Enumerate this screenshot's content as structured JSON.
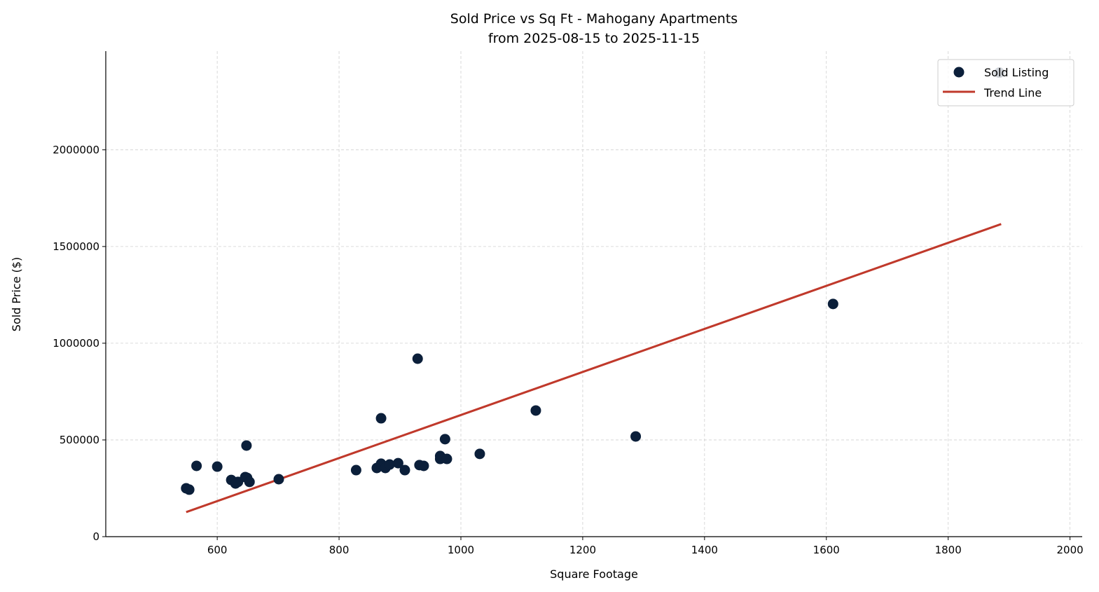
{
  "chart_data": {
    "type": "scatter",
    "title": "Sold Price vs Sq Ft - Mahogany Apartments",
    "subtitle": "from 2025-08-15 to 2025-11-15",
    "xlabel": "Square Footage",
    "ylabel": "Sold Price ($)",
    "xlim": [
      417,
      2020
    ],
    "ylim": [
      0,
      2510000
    ],
    "xticks": [
      600,
      800,
      1000,
      1200,
      1400,
      1600,
      1800,
      2000
    ],
    "yticks": [
      0,
      500000,
      1000000,
      1500000,
      2000000
    ],
    "grid": true,
    "legend_position": "top-right",
    "series": [
      {
        "name": "Sold Listing",
        "type": "scatter",
        "color": "#0b1f3a",
        "points": [
          [
            549,
            250000
          ],
          [
            554,
            243000
          ],
          [
            566,
            366000
          ],
          [
            600,
            362000
          ],
          [
            623,
            293000
          ],
          [
            630,
            275000
          ],
          [
            634,
            283000
          ],
          [
            646,
            308000
          ],
          [
            648,
            471000
          ],
          [
            649,
            304000
          ],
          [
            653,
            283000
          ],
          [
            701,
            297000
          ],
          [
            828,
            344000
          ],
          [
            862,
            355000
          ],
          [
            869,
            377000
          ],
          [
            869,
            612000
          ],
          [
            876,
            355000
          ],
          [
            883,
            373000
          ],
          [
            897,
            380000
          ],
          [
            908,
            344000
          ],
          [
            929,
            920000
          ],
          [
            932,
            370000
          ],
          [
            939,
            366000
          ],
          [
            966,
            417000
          ],
          [
            966,
            402000
          ],
          [
            974,
            504000
          ],
          [
            977,
            402000
          ],
          [
            1031,
            428000
          ],
          [
            1123,
            652000
          ],
          [
            1287,
            518000
          ],
          [
            1611,
            1203000
          ],
          [
            1884,
            2399000
          ]
        ]
      },
      {
        "name": "Trend Line",
        "type": "line",
        "color": "#c0392b",
        "points": [
          [
            549,
            127000
          ],
          [
            1887,
            1616000
          ]
        ]
      }
    ]
  }
}
